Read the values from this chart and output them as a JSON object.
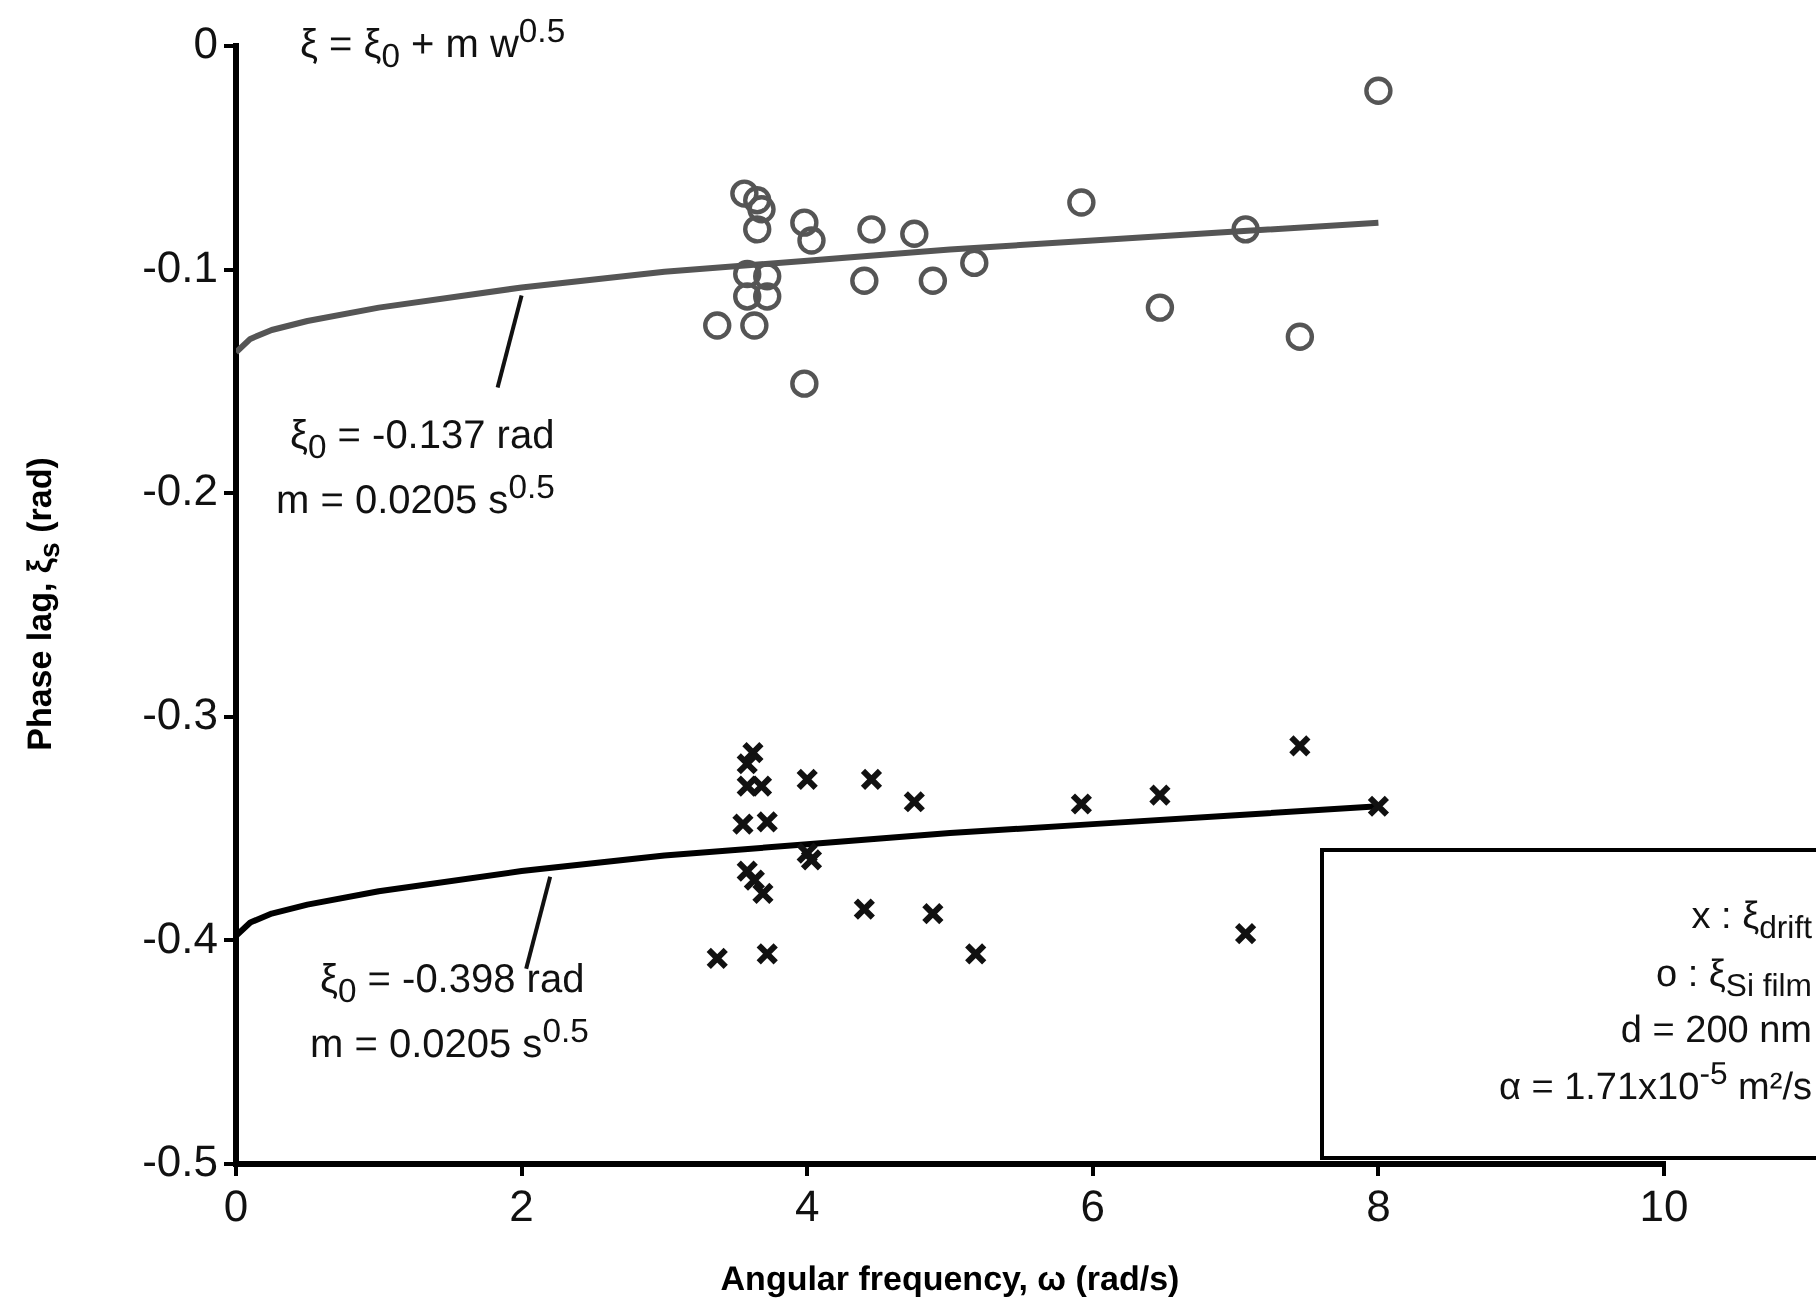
{
  "chart_data": {
    "type": "scatter",
    "xlabel": "Angular frequency, ω (rad/s)",
    "ylabel": "Phase lag, ξ$_{s}$ (rad)",
    "xlim": [
      0,
      10
    ],
    "xticks": [
      0,
      2,
      4,
      6,
      8,
      10
    ],
    "ylim": [
      -0.5,
      0
    ],
    "yticks": [
      -0.5,
      -0.4,
      -0.3,
      -0.2,
      -0.1,
      0
    ],
    "grid": false,
    "legend": false,
    "annotations": [
      "ξ = ξ$_{0}$ + m w$^{0.5}$",
      {
        "text": "ξ$_{0}$ = -0.137 rad",
        "x": 2,
        "y": -0.108
      },
      "m = 0.0205 s$^{0.5}$",
      {
        "text": "ξ$_{0}$ = -0.398 rad",
        "x": 2.2,
        "y": -0.368
      },
      "m = 0.0205 s$^{0.5}$",
      "x : ξ$_{drift}$",
      "o : ξ$_{Si film}$",
      "d = 200 nm",
      "α = 1.71x10$^{-5}$ m²/s"
    ],
    "series": [
      {
        "marker": "circle",
        "color": "#555555",
        "x": [
          3.56,
          3.65,
          3.68,
          3.65,
          3.98,
          4.03,
          4.45,
          4.75,
          5.17,
          5.92,
          7.07,
          3.58,
          3.72,
          3.58,
          3.72,
          3.37,
          3.63,
          4.4,
          4.88,
          6.47,
          7.45,
          3.98,
          8.0
        ],
        "values": [
          -0.066,
          -0.069,
          -0.073,
          -0.082,
          -0.079,
          -0.087,
          -0.082,
          -0.084,
          -0.097,
          -0.07,
          -0.082,
          -0.102,
          -0.103,
          -0.112,
          -0.112,
          -0.125,
          -0.125,
          -0.105,
          -0.105,
          -0.117,
          -0.13,
          -0.151,
          -0.02
        ]
      },
      {
        "marker": "cross",
        "color": "#111111",
        "x": [
          3.62,
          3.58,
          3.58,
          3.68,
          4.0,
          4.45,
          4.75,
          5.92,
          6.47,
          7.45,
          3.55,
          3.72,
          3.58,
          3.63,
          3.69,
          4.0,
          4.03,
          4.4,
          4.88,
          7.07,
          3.37,
          3.72,
          5.18,
          8.0
        ],
        "values": [
          -0.316,
          -0.321,
          -0.331,
          -0.331,
          -0.328,
          -0.328,
          -0.338,
          -0.339,
          -0.335,
          -0.313,
          -0.348,
          -0.347,
          -0.369,
          -0.373,
          -0.379,
          -0.361,
          -0.364,
          -0.386,
          -0.388,
          -0.397,
          -0.408,
          -0.406,
          -0.406,
          -0.34
        ]
      },
      {
        "type": "line",
        "marker": "none",
        "line_style": "solid",
        "color": "#555555",
        "x": [
          0,
          0.1,
          0.25,
          0.5,
          1,
          2,
          3,
          4,
          5,
          6,
          7,
          8
        ],
        "values": [
          -0.137,
          -0.131,
          -0.127,
          -0.123,
          -0.117,
          -0.108,
          -0.101,
          -0.096,
          -0.091,
          -0.087,
          -0.083,
          -0.079
        ]
      },
      {
        "type": "line",
        "marker": "none",
        "line_style": "solid",
        "color": "#000000",
        "x": [
          0,
          0.1,
          0.25,
          0.5,
          1,
          2,
          3,
          4,
          5,
          6,
          7,
          8
        ],
        "values": [
          -0.398,
          -0.392,
          -0.388,
          -0.384,
          -0.378,
          -0.369,
          -0.362,
          -0.357,
          -0.352,
          -0.348,
          -0.344,
          -0.34
        ]
      }
    ]
  }
}
